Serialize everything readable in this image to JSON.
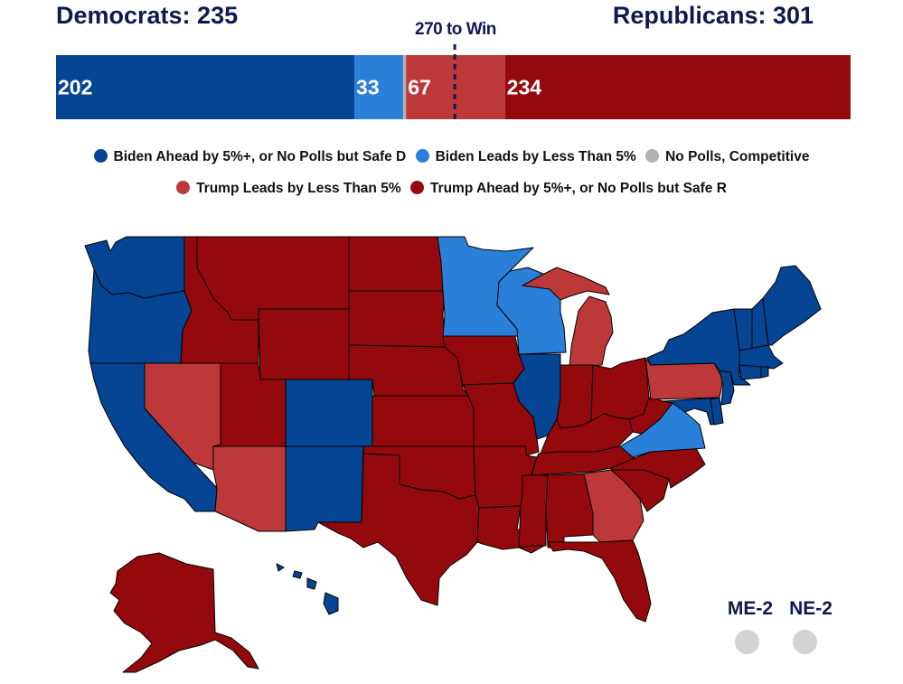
{
  "header": {
    "dem_label": "Democrats: 235",
    "rep_label": "Republicans: 301",
    "win_label": "270 to Win"
  },
  "colors": {
    "safe_d": "#064494",
    "lean_d": "#2a7fd8",
    "tossup": "#b3b0b0",
    "lean_r": "#bd3838",
    "safe_r": "#940a0c",
    "text_dark": "#0d1a4f"
  },
  "chart_data": {
    "type": "bar",
    "title": "",
    "total": 538,
    "threshold": 270,
    "categories": [
      "Biden Ahead by 5%+, or No Polls but Safe D",
      "Biden Leads by Less Than 5%",
      "No Polls, Competitive",
      "Trump Leads by Less Than 5%",
      "Trump Ahead by 5%+, or No Polls but Safe R"
    ],
    "values": [
      202,
      33,
      2,
      67,
      234
    ],
    "labels": [
      "202",
      "33",
      "",
      "67",
      "234"
    ],
    "totals": {
      "dem": 235,
      "rep": 301
    }
  },
  "legend": [
    {
      "label": "Biden Ahead by 5%+, or No Polls but Safe D",
      "color": "#064494"
    },
    {
      "label": "Biden Leads by Less Than 5%",
      "color": "#2a7fd8"
    },
    {
      "label": "No Polls, Competitive",
      "color": "#b3b0b0"
    },
    {
      "label": "Trump Leads by Less Than 5%",
      "color": "#bd3838"
    },
    {
      "label": "Trump Ahead by 5%+, or No Polls but Safe R",
      "color": "#940a0c"
    }
  ],
  "states": [
    {
      "id": "WA",
      "rating": "safe_d"
    },
    {
      "id": "OR",
      "rating": "safe_d"
    },
    {
      "id": "CA",
      "rating": "safe_d"
    },
    {
      "id": "NV",
      "rating": "lean_r"
    },
    {
      "id": "ID",
      "rating": "safe_r"
    },
    {
      "id": "MT",
      "rating": "safe_r"
    },
    {
      "id": "WY",
      "rating": "safe_r"
    },
    {
      "id": "UT",
      "rating": "safe_r"
    },
    {
      "id": "AZ",
      "rating": "lean_r"
    },
    {
      "id": "CO",
      "rating": "safe_d"
    },
    {
      "id": "NM",
      "rating": "safe_d"
    },
    {
      "id": "ND",
      "rating": "safe_r"
    },
    {
      "id": "SD",
      "rating": "safe_r"
    },
    {
      "id": "NE",
      "rating": "safe_r"
    },
    {
      "id": "KS",
      "rating": "safe_r"
    },
    {
      "id": "OK",
      "rating": "safe_r"
    },
    {
      "id": "TX",
      "rating": "safe_r"
    },
    {
      "id": "MN",
      "rating": "lean_d"
    },
    {
      "id": "IA",
      "rating": "safe_r"
    },
    {
      "id": "MO",
      "rating": "safe_r"
    },
    {
      "id": "AR",
      "rating": "safe_r"
    },
    {
      "id": "LA",
      "rating": "safe_r"
    },
    {
      "id": "WI",
      "rating": "lean_d"
    },
    {
      "id": "IL",
      "rating": "safe_d"
    },
    {
      "id": "MI",
      "rating": "lean_r"
    },
    {
      "id": "IN",
      "rating": "safe_r"
    },
    {
      "id": "OH",
      "rating": "safe_r"
    },
    {
      "id": "KY",
      "rating": "safe_r"
    },
    {
      "id": "TN",
      "rating": "safe_r"
    },
    {
      "id": "MS",
      "rating": "safe_r"
    },
    {
      "id": "AL",
      "rating": "safe_r"
    },
    {
      "id": "GA",
      "rating": "lean_r"
    },
    {
      "id": "FL",
      "rating": "safe_r"
    },
    {
      "id": "SC",
      "rating": "safe_r"
    },
    {
      "id": "NC",
      "rating": "safe_r"
    },
    {
      "id": "VA",
      "rating": "lean_d"
    },
    {
      "id": "WV",
      "rating": "safe_r"
    },
    {
      "id": "PA",
      "rating": "lean_r"
    },
    {
      "id": "NY",
      "rating": "safe_d"
    },
    {
      "id": "MD",
      "rating": "safe_d"
    },
    {
      "id": "DE",
      "rating": "safe_d"
    },
    {
      "id": "NJ",
      "rating": "safe_d"
    },
    {
      "id": "CT",
      "rating": "safe_d"
    },
    {
      "id": "RI",
      "rating": "safe_d"
    },
    {
      "id": "MA",
      "rating": "safe_d"
    },
    {
      "id": "VT",
      "rating": "safe_d"
    },
    {
      "id": "NH",
      "rating": "safe_d"
    },
    {
      "id": "ME",
      "rating": "safe_d"
    },
    {
      "id": "AK",
      "rating": "safe_r"
    },
    {
      "id": "HI",
      "rating": "safe_d"
    }
  ],
  "districts": [
    {
      "label": "ME-2",
      "rating": "tossup"
    },
    {
      "label": "NE-2",
      "rating": "tossup"
    }
  ]
}
